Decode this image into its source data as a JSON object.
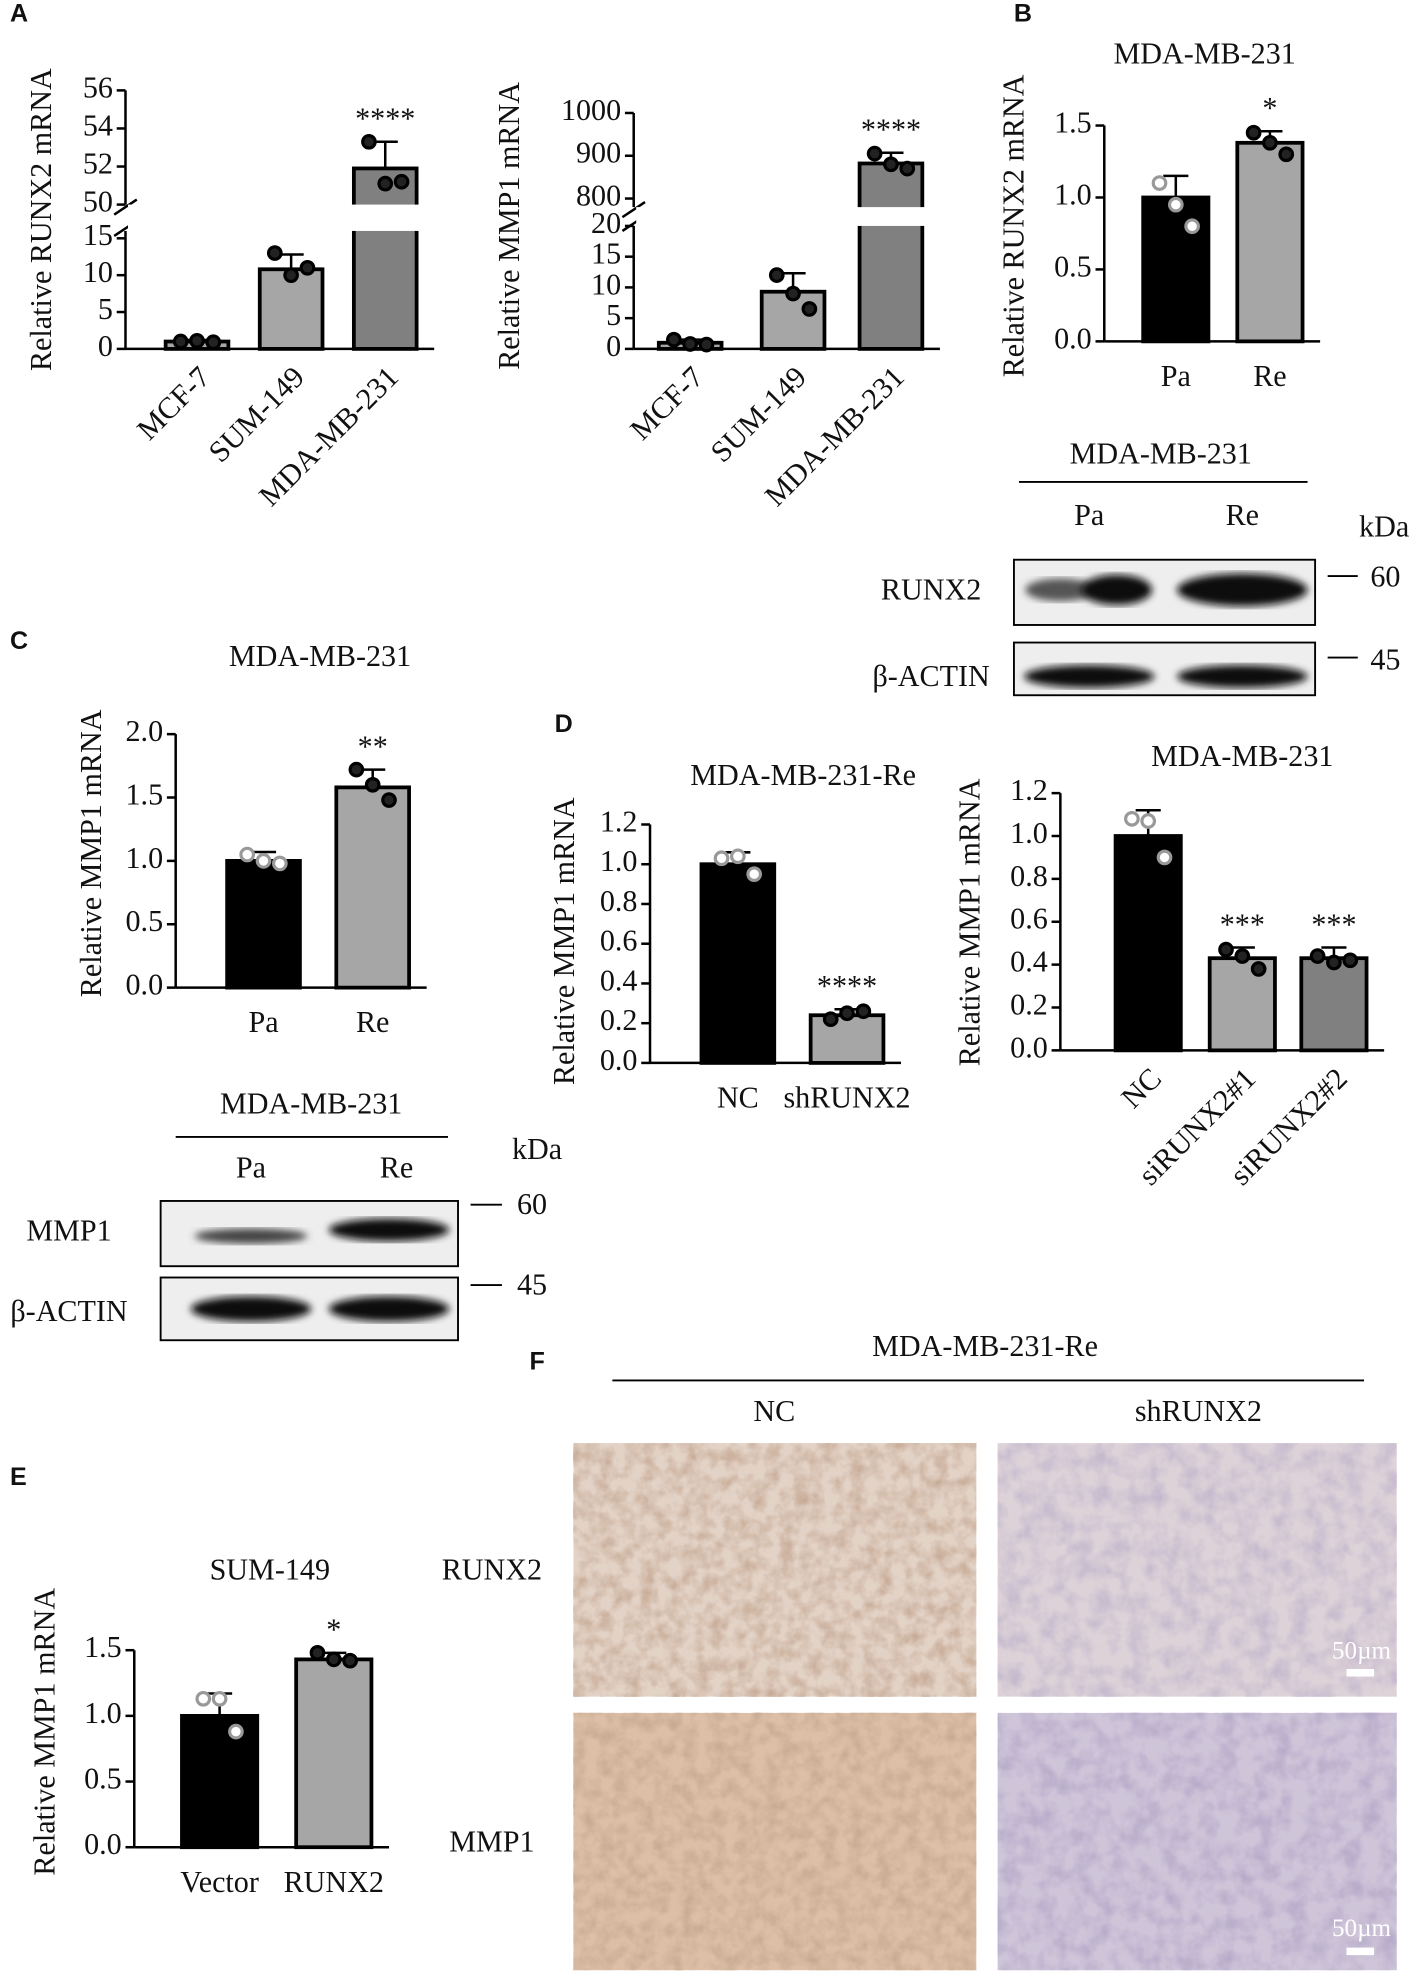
{
  "panel_letters": [
    "A",
    "B",
    "C",
    "D",
    "E",
    "F"
  ],
  "chart_data": [
    {
      "type": "bar",
      "y_label": "Relative RUNX2 mRNA",
      "categories": [
        "MCF-7",
        "SUM-149",
        "MDA-MB-231"
      ],
      "values": [
        1.0,
        10.8,
        51.9
      ],
      "errors": [
        0.2,
        2.0,
        1.4
      ],
      "points": [
        [
          1.0,
          1.1,
          0.9
        ],
        [
          13.0,
          10.0,
          11.0
        ],
        [
          53.3,
          51.1,
          51.2
        ]
      ],
      "significance": [
        null,
        null,
        "****"
      ],
      "colors": [
        "#a6a6a6",
        "#a6a6a6",
        "#808080"
      ],
      "ylim_segments": [
        [
          0,
          16
        ],
        [
          50,
          56
        ]
      ],
      "yticks": [
        0,
        5,
        10,
        15,
        50,
        52,
        54,
        56
      ],
      "rotate_labels": true
    },
    {
      "type": "bar",
      "y_label": "Relative MMP1 mRNA",
      "categories": [
        "MCF-7",
        "SUM-149",
        "MDA-MB-231"
      ],
      "values": [
        1.0,
        9.3,
        882
      ],
      "errors": [
        0.5,
        3.0,
        25
      ],
      "points": [
        [
          1.5,
          0.8,
          0.7
        ],
        [
          12.0,
          9.0,
          6.5
        ],
        [
          905,
          880,
          870
        ]
      ],
      "significance": [
        null,
        null,
        "****"
      ],
      "colors": [
        "#a6a6a6",
        "#a6a6a6",
        "#808080"
      ],
      "ylim_segments": [
        [
          0,
          20
        ],
        [
          780,
          1000
        ]
      ],
      "yticks": [
        0,
        5,
        10,
        15,
        20,
        800,
        900,
        1000
      ],
      "rotate_labels": true
    },
    {
      "type": "bar",
      "title": "MDA-MB-231",
      "y_label": "Relative RUNX2 mRNA",
      "categories": [
        "Pa",
        "Re"
      ],
      "values": [
        1.0,
        1.38
      ],
      "errors": [
        0.15,
        0.08
      ],
      "points": [
        [
          1.1,
          0.95,
          0.8
        ],
        [
          1.45,
          1.38,
          1.3
        ]
      ],
      "significance": [
        null,
        "*"
      ],
      "colors": [
        "#000000",
        "#a6a6a6"
      ],
      "ylim": [
        0,
        1.5
      ],
      "yticks": [
        {
          "value": 0,
          "label": "0.0"
        },
        {
          "value": 0.5,
          "label": "0.5"
        },
        {
          "value": 1,
          "label": "1.0"
        },
        {
          "value": 1.5,
          "label": "1.5"
        }
      ]
    },
    {
      "type": "bar",
      "title": "MDA-MB-231",
      "y_label": "Relative MMP1 mRNA",
      "categories": [
        "Pa",
        "Re"
      ],
      "values": [
        1.0,
        1.58
      ],
      "errors": [
        0.07,
        0.14
      ],
      "points": [
        [
          1.05,
          1.0,
          0.98
        ],
        [
          1.72,
          1.6,
          1.48
        ]
      ],
      "significance": [
        null,
        "**"
      ],
      "colors": [
        "#000000",
        "#a6a6a6"
      ],
      "ylim": [
        0,
        2
      ],
      "yticks": [
        {
          "value": 0,
          "label": "0.0"
        },
        {
          "value": 0.5,
          "label": "0.5"
        },
        {
          "value": 1,
          "label": "1.0"
        },
        {
          "value": 1.5,
          "label": "1.5"
        },
        {
          "value": 2,
          "label": "2.0"
        }
      ]
    },
    {
      "type": "bar",
      "title": "MDA-MB-231-Re",
      "y_label": "Relative MMP1 mRNA",
      "categories": [
        "NC",
        "shRUNX2"
      ],
      "values": [
        1.0,
        0.24
      ],
      "errors": [
        0.06,
        0.03
      ],
      "points": [
        [
          1.03,
          1.04,
          0.95
        ],
        [
          0.22,
          0.25,
          0.26
        ]
      ],
      "significance": [
        null,
        "****"
      ],
      "colors": [
        "#000000",
        "#a6a6a6"
      ],
      "ylim": [
        0,
        1.2
      ],
      "yticks": [
        {
          "value": 0,
          "label": "0.0"
        },
        {
          "value": 0.2,
          "label": "0.2"
        },
        {
          "value": 0.4,
          "label": "0.4"
        },
        {
          "value": 0.6,
          "label": "0.6"
        },
        {
          "value": 0.8,
          "label": "0.8"
        },
        {
          "value": 1,
          "label": "1.0"
        },
        {
          "value": 1.2,
          "label": "1.2"
        }
      ]
    },
    {
      "type": "bar",
      "title": "MDA-MB-231",
      "y_label": "Relative MMP1 mRNA",
      "categories": [
        "NC",
        "siRUNX2#1",
        "siRUNX2#2"
      ],
      "values": [
        1.0,
        0.43,
        0.43
      ],
      "errors": [
        0.12,
        0.05,
        0.05
      ],
      "points": [
        [
          1.08,
          1.07,
          0.9
        ],
        [
          0.47,
          0.44,
          0.38
        ],
        [
          0.44,
          0.41,
          0.42
        ]
      ],
      "significance": [
        null,
        "***",
        "***"
      ],
      "colors": [
        "#000000",
        "#a6a6a6",
        "#808080"
      ],
      "ylim": [
        0,
        1.2
      ],
      "yticks": [
        {
          "value": 0,
          "label": "0.0"
        },
        {
          "value": 0.2,
          "label": "0.2"
        },
        {
          "value": 0.4,
          "label": "0.4"
        },
        {
          "value": 0.6,
          "label": "0.6"
        },
        {
          "value": 0.8,
          "label": "0.8"
        },
        {
          "value": 1,
          "label": "1.0"
        },
        {
          "value": 1.2,
          "label": "1.2"
        }
      ],
      "rotate_labels": true
    },
    {
      "type": "bar",
      "title": "SUM-149",
      "y_label": "Relative MMP1 mRNA",
      "categories": [
        "Vector",
        "RUNX2"
      ],
      "values": [
        1.0,
        1.43
      ],
      "errors": [
        0.17,
        0.05
      ],
      "points": [
        [
          1.13,
          1.13,
          0.88
        ],
        [
          1.48,
          1.43,
          1.42
        ]
      ],
      "significance": [
        null,
        "*"
      ],
      "colors": [
        "#000000",
        "#a6a6a6"
      ],
      "ylim": [
        0,
        1.5
      ],
      "yticks": [
        {
          "value": 0,
          "label": "0.0"
        },
        {
          "value": 0.5,
          "label": "0.5"
        },
        {
          "value": 1,
          "label": "1.0"
        },
        {
          "value": 1.5,
          "label": "1.5"
        }
      ]
    }
  ],
  "blots": [
    {
      "title": "MDA-MB-231",
      "lanes": [
        "Pa",
        "Re"
      ],
      "unit": "kDa",
      "rows": [
        {
          "label": "RUNX2",
          "marker": 60
        },
        {
          "label": "β-ACTIN",
          "marker": 45
        }
      ]
    },
    {
      "title": "MDA-MB-231",
      "lanes": [
        "Pa",
        "Re"
      ],
      "unit": "kDa",
      "rows": [
        {
          "label": "MMP1",
          "marker": 60
        },
        {
          "label": "β-ACTIN",
          "marker": 45
        }
      ]
    }
  ],
  "ihc": {
    "title": "MDA-MB-231-Re",
    "columns": [
      "NC",
      "shRUNX2"
    ],
    "rows": [
      "RUNX2",
      "MMP1"
    ],
    "scale_bar": "50µm"
  }
}
